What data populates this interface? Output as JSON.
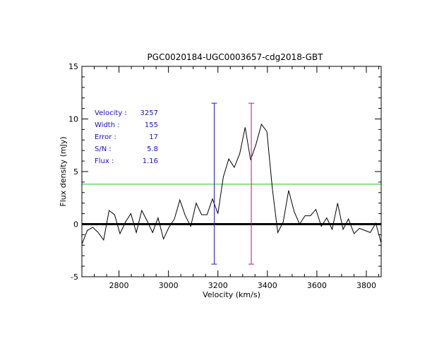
{
  "chart_data": {
    "type": "line",
    "title": "PGC0020184-UGC0003657-cdg2018-GBT",
    "xlabel": "Velocity (km/s)",
    "ylabel": "Flux density (mJy)",
    "xlim": [
      2650,
      3860
    ],
    "ylim": [
      -5,
      15
    ],
    "xticks": [
      2800,
      3000,
      3200,
      3400,
      3600,
      3800
    ],
    "yticks": [
      -5,
      0,
      5,
      10,
      15
    ],
    "grid": false,
    "series": [
      {
        "color": "#000000",
        "x": [
          2650,
          2672,
          2694,
          2716,
          2738,
          2760,
          2782,
          2804,
          2826,
          2848,
          2870,
          2892,
          2914,
          2936,
          2958,
          2980,
          3002,
          3024,
          3046,
          3068,
          3090,
          3112,
          3134,
          3156,
          3178,
          3200,
          3222,
          3244,
          3266,
          3288,
          3310,
          3332,
          3354,
          3376,
          3398,
          3420,
          3442,
          3464,
          3486,
          3508,
          3530,
          3552,
          3574,
          3596,
          3618,
          3640,
          3662,
          3684,
          3706,
          3728,
          3750,
          3772,
          3794,
          3816,
          3838,
          3860
        ],
        "y": [
          -1.9,
          -0.6,
          -0.3,
          -0.8,
          -1.5,
          1.3,
          0.9,
          -0.9,
          0.2,
          1.0,
          -0.8,
          1.3,
          0.3,
          -0.8,
          0.6,
          -1.4,
          -0.3,
          0.5,
          2.3,
          0.8,
          -0.2,
          2.0,
          0.9,
          0.9,
          2.4,
          1.0,
          4.5,
          6.2,
          5.4,
          6.7,
          9.2,
          6.1,
          7.6,
          9.5,
          8.8,
          3.4,
          -0.8,
          0.2,
          3.2,
          1.2,
          0.0,
          0.8,
          0.8,
          1.4,
          -0.2,
          0.6,
          -0.5,
          2.0,
          -0.5,
          0.5,
          -0.9,
          -0.4,
          -0.6,
          -0.8,
          0.1,
          -1.8
        ]
      }
    ],
    "horizontal_lines": [
      {
        "y": 0,
        "color": "#000000"
      },
      {
        "y": 3.8,
        "color": "#22c322"
      }
    ],
    "markers": [
      {
        "x": 3185,
        "y0": -3.8,
        "y1": 11.5,
        "color": "#2a13c8"
      },
      {
        "x": 3335,
        "y0": -3.8,
        "y1": 11.5,
        "color": "#c0147a"
      }
    ],
    "annotations": [
      {
        "label": "Velocity :",
        "value": "3257"
      },
      {
        "label": "Width :",
        "value": "155"
      },
      {
        "label": "Error :",
        "value": "17"
      },
      {
        "label": "S/N :",
        "value": "5.8"
      },
      {
        "label": "Flux :",
        "value": "1.16"
      }
    ],
    "annotation_color": "#1a10c8"
  }
}
